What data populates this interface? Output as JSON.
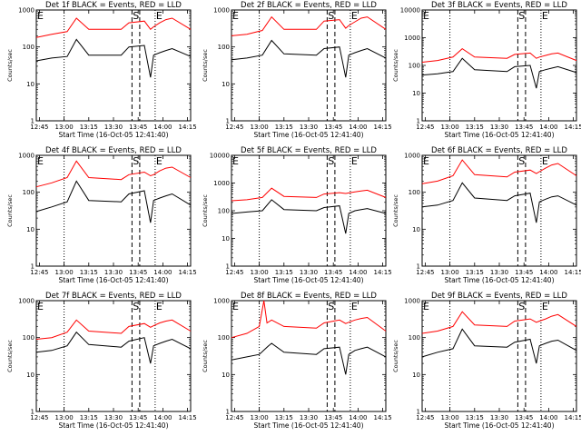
{
  "chart_data": [
    {
      "type": "line",
      "title": "Det 1f BLACK = Events, RED = LLD",
      "xlabel": "Start Time (16-Oct-05 12:41:40)",
      "ylabel": "Counts/sec",
      "xlim": [
        0,
        100
      ],
      "ylim": [
        1,
        1000
      ],
      "yscale": "log",
      "x_tick_labels": [
        "12:45",
        "13:00",
        "13:15",
        "13:30",
        "13:45",
        "14:00",
        "14:15"
      ],
      "y_tick_labels": [
        "1",
        "10",
        "100",
        "1000"
      ],
      "markers": [
        "E",
        "S",
        "E"
      ],
      "series": [
        {
          "name": "Events",
          "color": "#000000",
          "x": [
            0,
            10,
            20,
            26,
            34,
            55,
            60,
            70,
            74,
            76,
            80,
            84,
            88,
            100
          ],
          "y": [
            42,
            50,
            55,
            160,
            60,
            60,
            100,
            110,
            15,
            60,
            70,
            80,
            90,
            55
          ]
        },
        {
          "name": "LLD",
          "color": "#ff0000",
          "x": [
            0,
            10,
            20,
            26,
            34,
            55,
            60,
            70,
            74,
            76,
            80,
            84,
            88,
            100
          ],
          "y": [
            180,
            220,
            260,
            600,
            300,
            300,
            450,
            500,
            300,
            350,
            450,
            550,
            600,
            300
          ]
        }
      ]
    },
    {
      "type": "line",
      "title": "Det 2f BLACK = Events, RED = LLD",
      "xlabel": "Start Time (16-Oct-05 12:41:40)",
      "ylabel": "Counts/sec",
      "xlim": [
        0,
        100
      ],
      "ylim": [
        1,
        1000
      ],
      "yscale": "log",
      "x_tick_labels": [
        "12:45",
        "13:00",
        "13:15",
        "13:30",
        "13:45",
        "14:00",
        "14:15"
      ],
      "y_tick_labels": [
        "1",
        "10",
        "100",
        "1000"
      ],
      "markers": [
        "E",
        "S",
        "E"
      ],
      "series": [
        {
          "name": "Events",
          "color": "#000000",
          "x": [
            0,
            10,
            20,
            26,
            34,
            55,
            60,
            70,
            74,
            76,
            80,
            84,
            88,
            100
          ],
          "y": [
            45,
            50,
            60,
            150,
            65,
            60,
            90,
            100,
            15,
            60,
            70,
            80,
            90,
            50
          ]
        },
        {
          "name": "LLD",
          "color": "#ff0000",
          "x": [
            0,
            10,
            20,
            26,
            34,
            55,
            60,
            70,
            74,
            76,
            80,
            84,
            88,
            100
          ],
          "y": [
            200,
            220,
            280,
            650,
            300,
            300,
            500,
            550,
            320,
            380,
            480,
            600,
            650,
            300
          ]
        }
      ]
    },
    {
      "type": "line",
      "title": "Det 3f BLACK = Events, RED = LLD",
      "xlabel": "Start Time (16-Oct-05 12:41:40)",
      "ylabel": "Counts/sec",
      "xlim": [
        0,
        100
      ],
      "ylim": [
        1,
        10000
      ],
      "yscale": "log",
      "x_tick_labels": [
        "12:45",
        "13:00",
        "13:15",
        "13:30",
        "13:45",
        "14:00",
        "14:15"
      ],
      "y_tick_labels": [
        "1",
        "10",
        "100",
        "1000",
        "10000"
      ],
      "markers": [
        "E",
        "S",
        "E"
      ],
      "series": [
        {
          "name": "Events",
          "color": "#000000",
          "x": [
            0,
            10,
            20,
            26,
            34,
            55,
            60,
            70,
            74,
            76,
            80,
            84,
            88,
            100
          ],
          "y": [
            45,
            50,
            60,
            180,
            70,
            60,
            90,
            100,
            15,
            60,
            70,
            80,
            90,
            55
          ]
        },
        {
          "name": "LLD",
          "color": "#ff0000",
          "x": [
            0,
            10,
            20,
            26,
            34,
            55,
            60,
            70,
            74,
            76,
            80,
            84,
            88,
            100
          ],
          "y": [
            130,
            150,
            200,
            400,
            200,
            180,
            250,
            280,
            180,
            200,
            230,
            260,
            280,
            150
          ]
        }
      ]
    },
    {
      "type": "line",
      "title": "Det 4f BLACK = Events, RED = LLD",
      "xlabel": "Start Time (16-Oct-05 12:41:40)",
      "ylabel": "Counts/sec",
      "xlim": [
        0,
        100
      ],
      "ylim": [
        1,
        1000
      ],
      "yscale": "log",
      "x_tick_labels": [
        "12:45",
        "13:00",
        "13:15",
        "13:30",
        "13:45",
        "14:00",
        "14:15"
      ],
      "y_tick_labels": [
        "1",
        "10",
        "100",
        "1000"
      ],
      "markers": [
        "E",
        "S",
        "E"
      ],
      "series": [
        {
          "name": "Events",
          "color": "#000000",
          "x": [
            0,
            10,
            20,
            26,
            34,
            55,
            60,
            70,
            74,
            76,
            80,
            84,
            88,
            100
          ],
          "y": [
            30,
            40,
            55,
            200,
            60,
            55,
            90,
            110,
            15,
            60,
            70,
            80,
            90,
            45
          ]
        },
        {
          "name": "LLD",
          "color": "#ff0000",
          "x": [
            0,
            10,
            20,
            26,
            34,
            55,
            60,
            70,
            74,
            76,
            80,
            84,
            88,
            100
          ],
          "y": [
            140,
            180,
            250,
            700,
            250,
            220,
            300,
            350,
            280,
            300,
            380,
            450,
            480,
            250
          ]
        }
      ]
    },
    {
      "type": "line",
      "title": "Det 5f BLACK = Events, RED = LLD",
      "xlabel": "Start Time (16-Oct-05 12:41:40)",
      "ylabel": "Counts/sec",
      "xlim": [
        0,
        100
      ],
      "ylim": [
        1,
        10000
      ],
      "yscale": "log",
      "x_tick_labels": [
        "12:45",
        "13:00",
        "13:15",
        "13:30",
        "13:45",
        "14:00",
        "14:15"
      ],
      "y_tick_labels": [
        "1",
        "10",
        "100",
        "1000",
        "10000"
      ],
      "markers": [
        "E",
        "S",
        "E"
      ],
      "series": [
        {
          "name": "Events",
          "color": "#000000",
          "x": [
            0,
            10,
            20,
            26,
            34,
            55,
            60,
            70,
            74,
            76,
            80,
            84,
            88,
            100
          ],
          "y": [
            80,
            90,
            100,
            250,
            110,
            100,
            130,
            150,
            15,
            80,
            100,
            110,
            120,
            80
          ]
        },
        {
          "name": "LLD",
          "color": "#ff0000",
          "x": [
            0,
            10,
            20,
            26,
            34,
            55,
            60,
            70,
            74,
            76,
            80,
            84,
            88,
            100
          ],
          "y": [
            230,
            250,
            300,
            650,
            330,
            300,
            400,
            450,
            420,
            440,
            480,
            520,
            550,
            300
          ]
        }
      ]
    },
    {
      "type": "line",
      "title": "Det 6f BLACK = Events, RED = LLD",
      "xlabel": "Start Time (16-Oct-05 12:41:40)",
      "ylabel": "Counts/sec",
      "xlim": [
        0,
        100
      ],
      "ylim": [
        1,
        1000
      ],
      "yscale": "log",
      "x_tick_labels": [
        "12:45",
        "13:00",
        "13:15",
        "13:30",
        "13:45",
        "14:00",
        "14:15"
      ],
      "y_tick_labels": [
        "1",
        "10",
        "100",
        "1000"
      ],
      "markers": [
        "E",
        "S",
        "E"
      ],
      "series": [
        {
          "name": "Events",
          "color": "#000000",
          "x": [
            0,
            10,
            20,
            26,
            34,
            55,
            60,
            70,
            74,
            76,
            80,
            84,
            88,
            100
          ],
          "y": [
            40,
            45,
            60,
            180,
            70,
            60,
            80,
            95,
            15,
            55,
            65,
            75,
            80,
            45
          ]
        },
        {
          "name": "LLD",
          "color": "#ff0000",
          "x": [
            0,
            10,
            20,
            26,
            34,
            55,
            60,
            70,
            74,
            76,
            80,
            84,
            88,
            100
          ],
          "y": [
            170,
            200,
            280,
            750,
            300,
            260,
            350,
            400,
            320,
            360,
            450,
            550,
            600,
            280
          ]
        }
      ]
    },
    {
      "type": "line",
      "title": "Det 7f BLACK = Events, RED = LLD",
      "xlabel": "Start Time (16-Oct-05 12:41:40)",
      "ylabel": "Counts/sec",
      "xlim": [
        0,
        100
      ],
      "ylim": [
        1,
        1000
      ],
      "yscale": "log",
      "x_tick_labels": [
        "12:45",
        "13:00",
        "13:15",
        "13:30",
        "13:45",
        "14:00",
        "14:15"
      ],
      "y_tick_labels": [
        "1",
        "10",
        "100",
        "1000"
      ],
      "markers": [
        "E",
        "S",
        "E"
      ],
      "series": [
        {
          "name": "Events",
          "color": "#000000",
          "x": [
            0,
            10,
            20,
            26,
            34,
            55,
            60,
            70,
            74,
            76,
            80,
            84,
            88,
            100
          ],
          "y": [
            40,
            45,
            60,
            140,
            65,
            55,
            80,
            100,
            20,
            60,
            70,
            80,
            90,
            50
          ]
        },
        {
          "name": "LLD",
          "color": "#ff0000",
          "x": [
            0,
            10,
            20,
            26,
            34,
            55,
            60,
            70,
            74,
            76,
            80,
            84,
            88,
            100
          ],
          "y": [
            90,
            100,
            140,
            300,
            150,
            130,
            200,
            240,
            190,
            210,
            250,
            280,
            300,
            150
          ]
        }
      ]
    },
    {
      "type": "line",
      "title": "Det 8f BLACK = Events, RED = LLD",
      "xlabel": "Start Time (16-Oct-05 12:41:40)",
      "ylabel": "Counts/sec",
      "xlim": [
        0,
        100
      ],
      "ylim": [
        1,
        1000
      ],
      "yscale": "log",
      "x_tick_labels": [
        "12:45",
        "13:00",
        "13:15",
        "13:30",
        "13:45",
        "14:00",
        "14:15"
      ],
      "y_tick_labels": [
        "1",
        "10",
        "100",
        "1000"
      ],
      "markers": [
        "E",
        "S",
        "E"
      ],
      "series": [
        {
          "name": "Events",
          "color": "#000000",
          "x": [
            0,
            10,
            18,
            24,
            26,
            34,
            55,
            60,
            70,
            74,
            76,
            80,
            84,
            88,
            100
          ],
          "y": [
            25,
            30,
            35,
            60,
            70,
            40,
            35,
            50,
            55,
            10,
            35,
            45,
            50,
            55,
            30
          ]
        },
        {
          "name": "LLD",
          "color": "#ff0000",
          "x": [
            0,
            10,
            18,
            21,
            23,
            26,
            34,
            55,
            60,
            70,
            74,
            76,
            80,
            84,
            88,
            100
          ],
          "y": [
            100,
            130,
            200,
            1000,
            250,
            300,
            200,
            180,
            250,
            300,
            240,
            260,
            300,
            330,
            350,
            150
          ]
        }
      ]
    },
    {
      "type": "line",
      "title": "Det 9f BLACK = Events, RED = LLD",
      "xlabel": "Start Time (16-Oct-05 12:41:40)",
      "ylabel": "Counts/sec",
      "xlim": [
        0,
        100
      ],
      "ylim": [
        1,
        1000
      ],
      "yscale": "log",
      "x_tick_labels": [
        "12:45",
        "13:00",
        "13:15",
        "13:30",
        "13:45",
        "14:00",
        "14:15"
      ],
      "y_tick_labels": [
        "1",
        "10",
        "100",
        "1000"
      ],
      "markers": [
        "E",
        "S",
        "E"
      ],
      "series": [
        {
          "name": "Events",
          "color": "#000000",
          "x": [
            0,
            10,
            20,
            26,
            34,
            55,
            60,
            70,
            74,
            76,
            80,
            84,
            88,
            100
          ],
          "y": [
            30,
            40,
            50,
            170,
            60,
            55,
            75,
            90,
            20,
            60,
            70,
            80,
            85,
            45
          ]
        },
        {
          "name": "LLD",
          "color": "#ff0000",
          "x": [
            0,
            10,
            20,
            26,
            34,
            55,
            60,
            70,
            74,
            76,
            80,
            84,
            88,
            100
          ],
          "y": [
            130,
            150,
            200,
            500,
            220,
            200,
            280,
            320,
            260,
            280,
            320,
            380,
            420,
            200
          ]
        }
      ]
    }
  ]
}
